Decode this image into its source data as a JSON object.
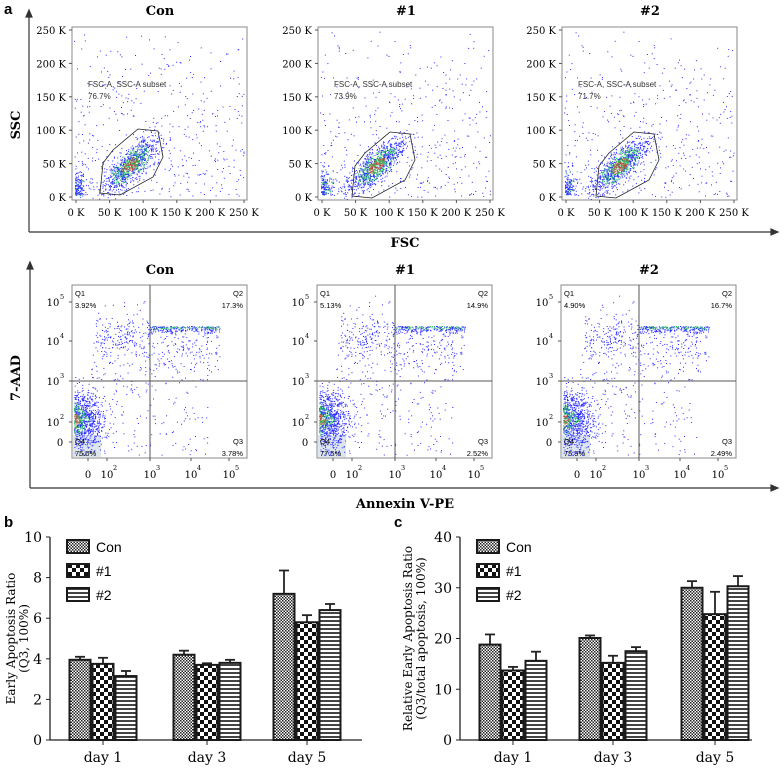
{
  "figure": {
    "panel_a_label": "a",
    "panel_b_label": "b",
    "panel_c_label": "c",
    "scatter_axis_x": "FSC",
    "scatter_axis_y": "SSC",
    "apop_axis_x": "Annexin V-PE",
    "apop_axis_y": "7-AAD",
    "scatter_ticks_x": [
      "0 K",
      "50 K",
      "100 K",
      "150 K",
      "200 K",
      "250 K"
    ],
    "scatter_ticks_y": [
      "250 K",
      "200 K",
      "150 K",
      "100 K",
      "50 K",
      "0 K"
    ],
    "apop_ticks_x": [
      "0",
      "10",
      "2",
      "10",
      "3",
      "10",
      "4",
      "10",
      "5"
    ],
    "apop_ticks_y": [
      "10",
      "5",
      "10",
      "4",
      "10",
      "3",
      "10",
      "2",
      "0"
    ],
    "gate_label": "FSC-A, SSC-A subset",
    "scatter_plots": [
      {
        "title": "Con",
        "gate_pct": "76.7%"
      },
      {
        "title": "#1",
        "gate_pct": "73.9%"
      },
      {
        "title": "#2",
        "gate_pct": "71.7%"
      }
    ],
    "apop_plots": [
      {
        "title": "Con",
        "q1": "Q1",
        "q1_pct": "3.92%",
        "q2": "Q2",
        "q2_pct": "17.3%",
        "q3": "Q3",
        "q3_pct": "3.78%",
        "q4": "Q4",
        "q4_pct": "75.0%"
      },
      {
        "title": "#1",
        "q1": "Q1",
        "q1_pct": "5.13%",
        "q2": "Q2",
        "q2_pct": "14.9%",
        "q3": "Q3",
        "q3_pct": "2.52%",
        "q4": "Q4",
        "q4_pct": "77.5%"
      },
      {
        "title": "#2",
        "q1": "Q1",
        "q1_pct": "4.90%",
        "q2": "Q2",
        "q2_pct": "16.7%",
        "q3": "Q3",
        "q3_pct": "2.49%",
        "q4": "Q4",
        "q4_pct": "75.9%"
      }
    ],
    "colors": {
      "event_low": "#2a2aff",
      "event_mid": "#22c060",
      "event_high": "#c04040",
      "bar_edge": "#1a1a1a"
    }
  },
  "chart_data": [
    {
      "type": "bar",
      "panel": "b",
      "ylabel": "Early Apoptosis Ratio (Q3, 100%)",
      "ylabel_lines": [
        "Early Apoptosis Ratio",
        "(Q3, 100%)"
      ],
      "categories": [
        "day 1",
        "day 3",
        "day 5"
      ],
      "ylim": [
        0,
        10
      ],
      "yticks": [
        "0",
        "2",
        "4",
        "6",
        "8",
        "10"
      ],
      "legend": "top-left",
      "series": [
        {
          "name": "Con",
          "values": [
            3.95,
            4.2,
            7.2
          ],
          "errors": [
            0.15,
            0.2,
            1.15
          ]
        },
        {
          "name": "#1",
          "values": [
            3.75,
            3.7,
            5.8
          ],
          "errors": [
            0.3,
            0.08,
            0.35
          ]
        },
        {
          "name": "#2",
          "values": [
            3.15,
            3.8,
            6.4
          ],
          "errors": [
            0.25,
            0.15,
            0.3
          ]
        }
      ]
    },
    {
      "type": "bar",
      "panel": "c",
      "ylabel": "Relative Early Apoptosis Ratio (Q3/total apoptosis, 100%)",
      "ylabel_lines": [
        "Relative Early Apoptosis Ratio",
        "(Q3/total apoptosis, 100%)"
      ],
      "categories": [
        "day 1",
        "day 3",
        "day 5"
      ],
      "ylim": [
        0,
        40
      ],
      "yticks": [
        "0",
        "10",
        "20",
        "30",
        "40"
      ],
      "legend": "top-left",
      "series": [
        {
          "name": "Con",
          "values": [
            18.8,
            20.1,
            30.0
          ],
          "errors": [
            2.0,
            0.5,
            1.3
          ]
        },
        {
          "name": "#1",
          "values": [
            13.7,
            15.2,
            24.8
          ],
          "errors": [
            0.7,
            1.4,
            4.4
          ]
        },
        {
          "name": "#2",
          "values": [
            15.6,
            17.5,
            30.3
          ],
          "errors": [
            1.8,
            0.8,
            2.0
          ]
        }
      ]
    }
  ]
}
